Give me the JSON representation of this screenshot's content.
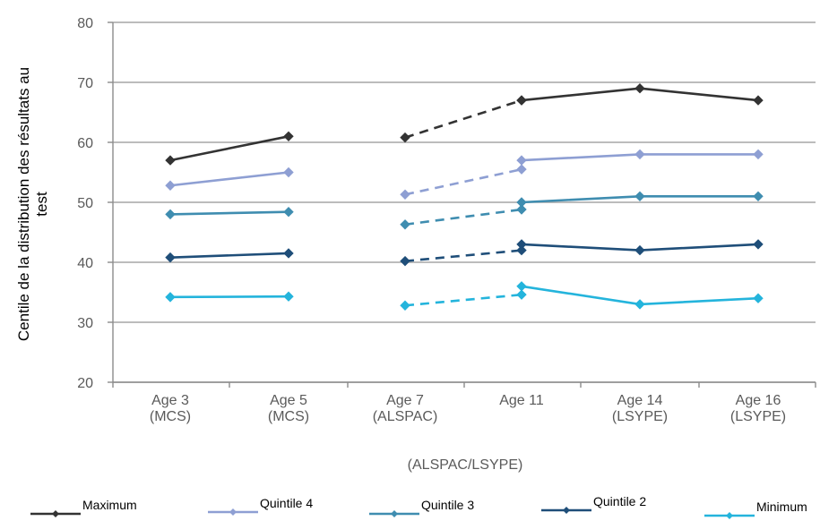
{
  "chart_data": {
    "type": "line",
    "xlabel": "(ALSPAC/LSYPE)",
    "ylabel": [
      "Centile de la distribution des résultats au",
      "test"
    ],
    "ylim": [
      20,
      80
    ],
    "yticks": [
      20,
      30,
      40,
      50,
      60,
      70,
      80
    ],
    "grid": true,
    "legend_position": "bottom",
    "categories": [
      [
        "Age 3",
        "(MCS)"
      ],
      [
        "Age 5",
        "(MCS)"
      ],
      [
        "Age 7",
        "(ALSPAC)"
      ],
      [
        "Age 11"
      ],
      [
        "Age 14",
        "(LSYPE)"
      ],
      [
        "Age 16",
        "(LSYPE)"
      ]
    ],
    "series": [
      {
        "name": "Maximum",
        "color": "#333333",
        "mcs": [
          57,
          61
        ],
        "dashed": [
          60.8,
          67
        ],
        "solid": [
          67,
          69,
          67
        ]
      },
      {
        "name": "Quintile 4",
        "color": "#8e9fd3",
        "mcs": [
          52.8,
          55
        ],
        "dashed": [
          51.3,
          55.5
        ],
        "solid": [
          57,
          58,
          58
        ]
      },
      {
        "name": "Quintile 3",
        "color": "#3f8db0",
        "mcs": [
          48,
          48.4
        ],
        "dashed": [
          46.3,
          48.8
        ],
        "solid": [
          50,
          51,
          51
        ]
      },
      {
        "name": "Quintile 2",
        "color": "#1f4e79",
        "mcs": [
          40.8,
          41.5
        ],
        "dashed": [
          40.2,
          42
        ],
        "solid": [
          43,
          42,
          43
        ]
      },
      {
        "name": "Minimum",
        "color": "#24b4dc",
        "mcs": [
          34.2,
          34.3
        ],
        "dashed": [
          32.8,
          34.6
        ],
        "solid": [
          36,
          33,
          34
        ]
      }
    ]
  }
}
